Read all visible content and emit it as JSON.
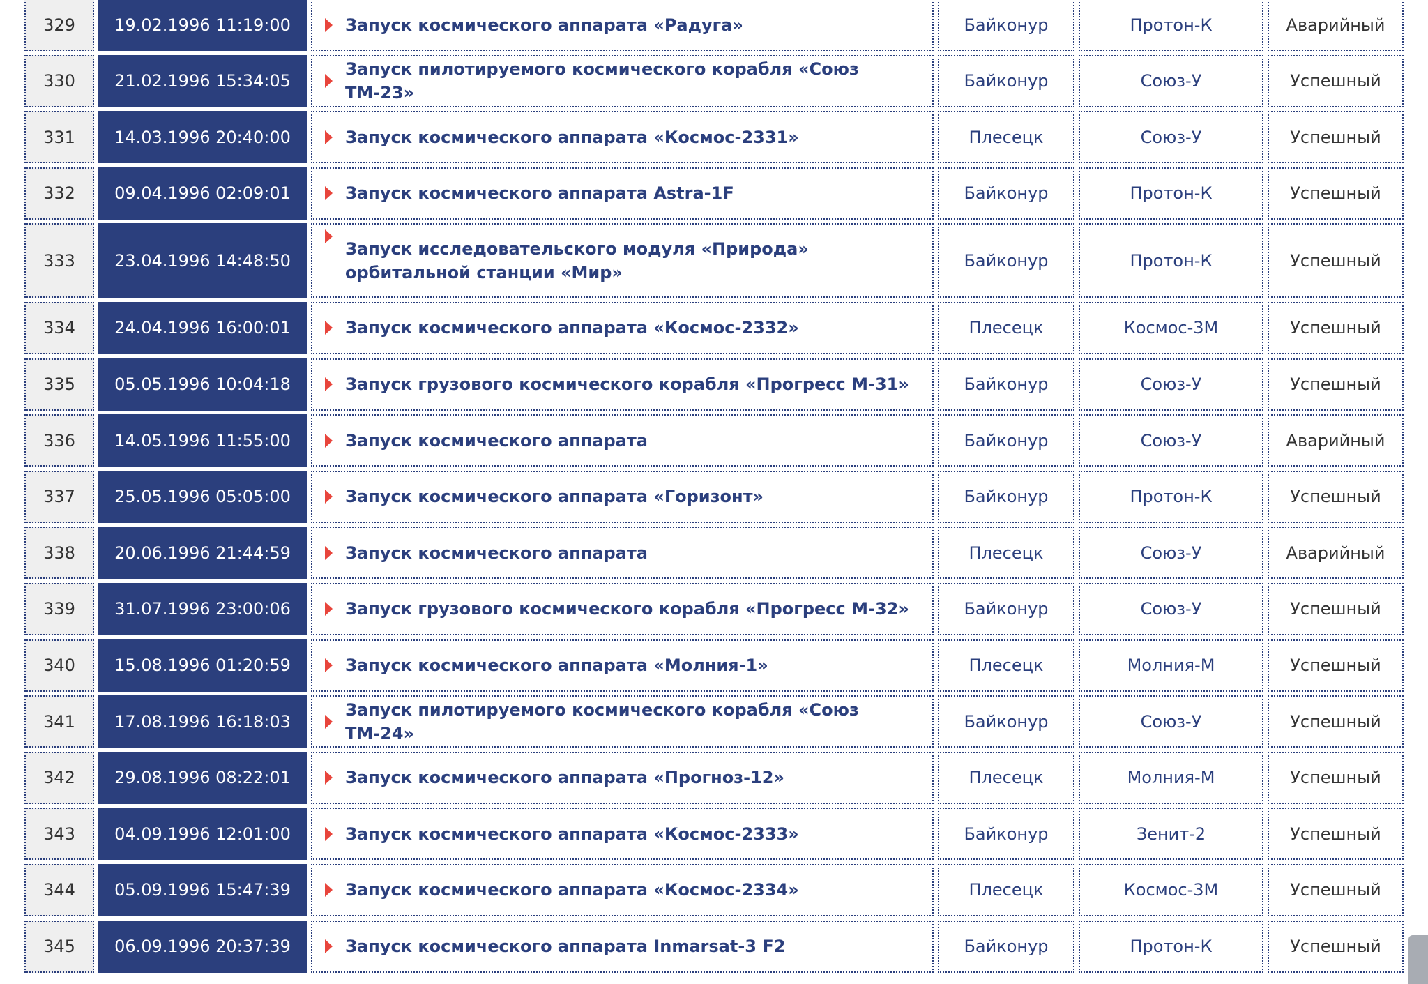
{
  "colors": {
    "accent": "#2b3f7d",
    "marker": "#e8453c",
    "number_bg": "#efefef"
  },
  "launches": [
    {
      "num": "329",
      "date": "19.02.1996 11:19:00",
      "title": "Запуск космического аппарата «Радуга»",
      "site": "Байконур",
      "rocket": "Протон-К",
      "result": "Аварийный"
    },
    {
      "num": "330",
      "date": "21.02.1996 15:34:05",
      "title": "Запуск пилотируемого космического корабля «Союз ТМ-23»",
      "site": "Байконур",
      "rocket": "Союз-У",
      "result": "Успешный"
    },
    {
      "num": "331",
      "date": "14.03.1996 20:40:00",
      "title": "Запуск космического аппарата «Космос-2331»",
      "site": "Плесецк",
      "rocket": "Союз-У",
      "result": "Успешный"
    },
    {
      "num": "332",
      "date": "09.04.1996 02:09:01",
      "title": "Запуск космического аппарата Astra-1F",
      "site": "Байконур",
      "rocket": "Протон-К",
      "result": "Успешный"
    },
    {
      "num": "333",
      "date": "23.04.1996 14:48:50",
      "title": "Запуск исследовательского модуля «Природа» орбитальной станции «Мир»",
      "site": "Байконур",
      "rocket": "Протон-К",
      "result": "Успешный"
    },
    {
      "num": "334",
      "date": "24.04.1996 16:00:01",
      "title": "Запуск космического аппарата «Космос-2332»",
      "site": "Плесецк",
      "rocket": "Космос-3М",
      "result": "Успешный"
    },
    {
      "num": "335",
      "date": "05.05.1996 10:04:18",
      "title": "Запуск грузового космического корабля «Прогресс М-31»",
      "site": "Байконур",
      "rocket": "Союз-У",
      "result": "Успешный"
    },
    {
      "num": "336",
      "date": "14.05.1996 11:55:00",
      "title": "Запуск космического аппарата",
      "site": "Байконур",
      "rocket": "Союз-У",
      "result": "Аварийный"
    },
    {
      "num": "337",
      "date": "25.05.1996 05:05:00",
      "title": "Запуск космического аппарата «Горизонт»",
      "site": "Байконур",
      "rocket": "Протон-К",
      "result": "Успешный"
    },
    {
      "num": "338",
      "date": "20.06.1996 21:44:59",
      "title": "Запуск космического аппарата",
      "site": "Плесецк",
      "rocket": "Союз-У",
      "result": "Аварийный"
    },
    {
      "num": "339",
      "date": "31.07.1996 23:00:06",
      "title": "Запуск грузового космического корабля «Прогресс М-32»",
      "site": "Байконур",
      "rocket": "Союз-У",
      "result": "Успешный"
    },
    {
      "num": "340",
      "date": "15.08.1996 01:20:59",
      "title": "Запуск космического аппарата «Молния-1»",
      "site": "Плесецк",
      "rocket": "Молния-М",
      "result": "Успешный"
    },
    {
      "num": "341",
      "date": "17.08.1996 16:18:03",
      "title": "Запуск пилотируемого космического корабля «Союз ТМ-24»",
      "site": "Байконур",
      "rocket": "Союз-У",
      "result": "Успешный"
    },
    {
      "num": "342",
      "date": "29.08.1996 08:22:01",
      "title": "Запуск космического аппарата «Прогноз-12»",
      "site": "Плесецк",
      "rocket": "Молния-М",
      "result": "Успешный"
    },
    {
      "num": "343",
      "date": "04.09.1996 12:01:00",
      "title": "Запуск космического аппарата «Космос-2333»",
      "site": "Байконур",
      "rocket": "Зенит-2",
      "result": "Успешный"
    },
    {
      "num": "344",
      "date": "05.09.1996 15:47:39",
      "title": "Запуск космического аппарата «Космос-2334»",
      "site": "Плесецк",
      "rocket": "Космос-3М",
      "result": "Успешный"
    },
    {
      "num": "345",
      "date": "06.09.1996 20:37:39",
      "title": "Запуск космического аппарата Inmarsat-3 F2",
      "site": "Байконур",
      "rocket": "Протон-К",
      "result": "Успешный"
    }
  ]
}
